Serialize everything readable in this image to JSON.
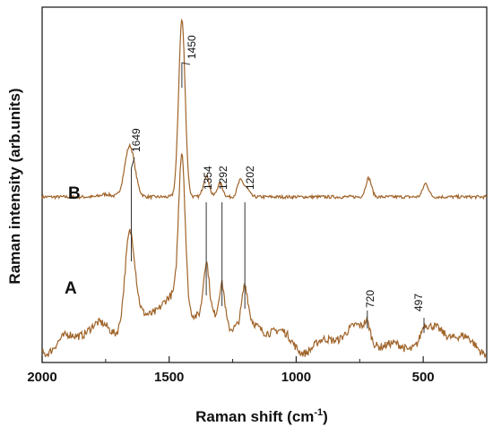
{
  "chart_data": {
    "type": "line",
    "xlabel": "Raman shift (cm-1)",
    "ylabel": "Raman intensity (arb.units)",
    "xlim": [
      2000,
      250
    ],
    "x_ticks": [
      "2000",
      "1500",
      "1000",
      "500"
    ],
    "x_tick_values": [
      2000,
      1500,
      1000,
      500
    ],
    "reversed_x": true,
    "y_ticks_shown": false,
    "grid": false,
    "series": [
      {
        "name": "B",
        "baseline": 0.56,
        "peaks": [
          {
            "x": 1750,
            "h": 0.01
          },
          {
            "x": 1655,
            "h": 0.19
          },
          {
            "x": 1450,
            "h": 0.66
          },
          {
            "x": 1354,
            "h": 0.08
          },
          {
            "x": 1300,
            "h": 0.05
          },
          {
            "x": 1220,
            "h": 0.06
          },
          {
            "x": 1195,
            "h": 0.03
          },
          {
            "x": 715,
            "h": 0.07
          },
          {
            "x": 490,
            "h": 0.05
          }
        ]
      },
      {
        "name": "A",
        "baseline": 0.03,
        "peaks": [
          {
            "x": 1655,
            "h": 0.35
          },
          {
            "x": 1450,
            "h": 0.56
          },
          {
            "x": 1354,
            "h": 0.19
          },
          {
            "x": 1292,
            "h": 0.15
          },
          {
            "x": 1202,
            "h": 0.13
          },
          {
            "x": 720,
            "h": 0.05
          },
          {
            "x": 497,
            "h": 0.03
          }
        ]
      }
    ],
    "peak_annotations": [
      {
        "label": "1649",
        "x": 1649,
        "series": "B"
      },
      {
        "label": "1450",
        "x": 1450,
        "series": "B"
      },
      {
        "label": "1354",
        "x": 1354,
        "series": "B"
      },
      {
        "label": "1292",
        "x": 1292,
        "series": "B"
      },
      {
        "label": "1202",
        "x": 1202,
        "series": "B"
      },
      {
        "label": "720",
        "x": 720,
        "series": "A"
      },
      {
        "label": "497",
        "x": 497,
        "series": "A"
      }
    ]
  },
  "labels": {
    "series_b": "B",
    "series_a": "A",
    "xlabel_main": "Raman shift (cm",
    "xlabel_sup": "-1",
    "xlabel_close": ")",
    "ylabel": "Raman intensity (arb.units)"
  }
}
